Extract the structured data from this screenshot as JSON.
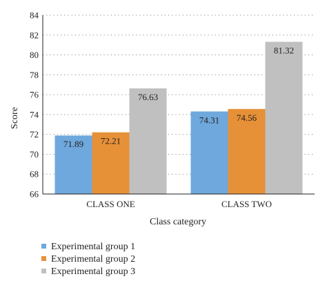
{
  "chart_data": {
    "type": "bar",
    "title": "",
    "xlabel": "Class category",
    "ylabel": "Score",
    "ylim": [
      66,
      84
    ],
    "yticks": [
      66,
      68,
      70,
      72,
      74,
      76,
      78,
      80,
      82,
      84
    ],
    "grid": "horizontal dotted",
    "legend_placement": "bottom-left",
    "categories": [
      "CLASS ONE",
      "CLASS TWO"
    ],
    "series": [
      {
        "name": "Experimental group 1",
        "color": "#6fa8dc",
        "values": [
          71.89,
          74.31
        ],
        "labels": [
          "71.89",
          "74.31"
        ]
      },
      {
        "name": "Experimental group 2",
        "color": "#e69138",
        "values": [
          72.21,
          74.56
        ],
        "labels": [
          "72.21",
          "74.56"
        ]
      },
      {
        "name": "Experimental group 3",
        "color": "#c0c0c0",
        "values": [
          76.63,
          81.32
        ],
        "labels": [
          "76.63",
          "81.32"
        ]
      }
    ]
  }
}
